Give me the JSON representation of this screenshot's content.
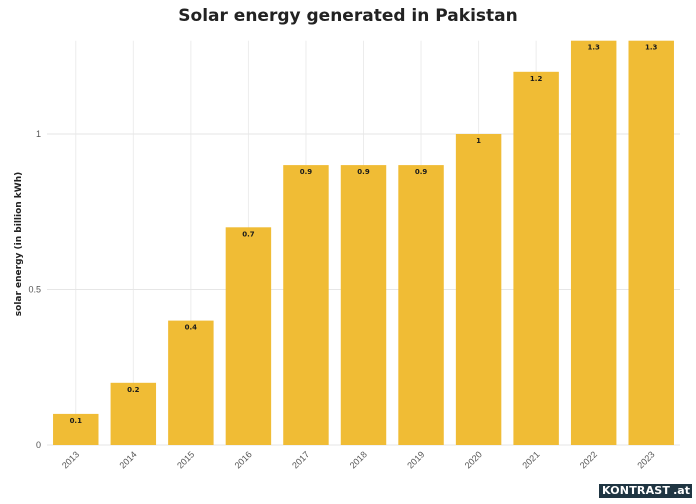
{
  "chart_data": {
    "type": "bar",
    "title": "Solar energy generated in Pakistan",
    "xlabel": "",
    "ylabel": "solar energy (in billion kWh)",
    "categories": [
      "2013",
      "2014",
      "2015",
      "2016",
      "2017",
      "2018",
      "2019",
      "2020",
      "2021",
      "2022",
      "2023"
    ],
    "values": [
      0.1,
      0.2,
      0.4,
      0.7,
      0.9,
      0.9,
      0.9,
      1,
      1.2,
      1.3,
      1.3
    ],
    "data_labels": [
      "0.1",
      "0.2",
      "0.4",
      "0.7",
      "0.9",
      "0.9",
      "0.9",
      "1",
      "1.2",
      "1.3",
      "1.3"
    ],
    "yticks": [
      0,
      0.5,
      1
    ],
    "ytick_labels": [
      "0",
      "0.5",
      "1"
    ],
    "ylim": [
      0,
      1.3
    ],
    "grid": true,
    "legend": "none",
    "bar_color": "#F0BC35"
  },
  "logo": {
    "main": "KONTRAST",
    "tld": ".at"
  }
}
